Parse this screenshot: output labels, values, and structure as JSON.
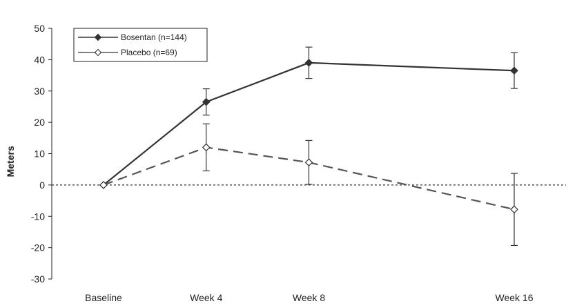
{
  "chart_data": {
    "type": "line",
    "title": "",
    "xlabel": "",
    "ylabel": "Meters",
    "categories": [
      "Baseline",
      "Week 4",
      "Week 8",
      "Week 16"
    ],
    "x": [
      0,
      4,
      8,
      16
    ],
    "ylim": [
      -30,
      50
    ],
    "yticks": [
      50,
      40,
      30,
      20,
      10,
      0,
      -10,
      -20,
      -30
    ],
    "ytick_labels": [
      "50",
      "40",
      "30",
      "20",
      "10",
      "0",
      "-10",
      "-20",
      "-30"
    ],
    "reference_line": {
      "y": 0,
      "style": "dotted"
    },
    "grid": false,
    "legend_position": "top-left",
    "series": [
      {
        "name": "Bosentan (n=144)",
        "values": [
          0,
          26.5,
          39,
          36.5
        ],
        "error": [
          0,
          4.2,
          5,
          5.7
        ],
        "color": "#333333",
        "line_style": "solid",
        "marker": "filled-diamond"
      },
      {
        "name": "Placebo (n=69)",
        "values": [
          0,
          12,
          7.2,
          -7.8
        ],
        "error": [
          0,
          7.5,
          7,
          11.5
        ],
        "color": "#555555",
        "line_style": "dashed",
        "marker": "open-diamond"
      }
    ]
  }
}
